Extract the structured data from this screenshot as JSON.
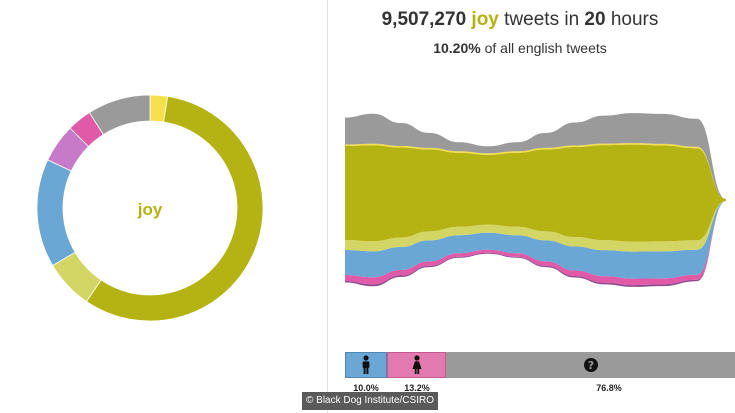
{
  "header": {
    "count": "9,507,270",
    "emotion": "joy",
    "mid": "tweets in",
    "hours": "20",
    "hours_unit": "hours",
    "share": "10.20%",
    "share_suffix": "of all english tweets"
  },
  "gender": {
    "male_label": "10.0%",
    "female_label": "13.2%",
    "unknown_label": "76.8%",
    "male_icon": "male-person-icon",
    "female_icon": "female-person-icon",
    "unknown_icon": "question-mark-icon"
  },
  "credit": "© Black Dog Institute/CSIRO",
  "chart_data": [
    {
      "type": "pie",
      "variant": "donut",
      "center_label": "joy",
      "slices": [
        {
          "value": 2.5,
          "color": "#f4e04d"
        },
        {
          "value": 57.0,
          "color": "#b5b314"
        },
        {
          "value": 7.0,
          "color": "#d3d665"
        },
        {
          "value": 15.5,
          "color": "#6aa7d4"
        },
        {
          "value": 5.5,
          "color": "#c77ac7"
        },
        {
          "value": 3.5,
          "color": "#e05aa8"
        },
        {
          "value": 9.0,
          "color": "#9a9a9a"
        }
      ]
    },
    {
      "type": "area",
      "stacked": true,
      "x": [
        0,
        1,
        2,
        3,
        4,
        5,
        6,
        7,
        8,
        9,
        10,
        11,
        12,
        13
      ],
      "series": [
        {
          "color": "#8f4a8f",
          "values": [
            1.5,
            2.0,
            1.5,
            1.2,
            1.0,
            0.9,
            1.0,
            1.3,
            1.6,
            1.8,
            1.8,
            1.7,
            1.4,
            0.0
          ]
        },
        {
          "color": "#e05aa8",
          "values": [
            6.0,
            7.0,
            5.5,
            4.5,
            3.5,
            3.0,
            3.5,
            4.5,
            5.5,
            6.5,
            6.5,
            6.0,
            5.0,
            0.0
          ]
        },
        {
          "color": "#6aa7d4",
          "values": [
            25.0,
            26.0,
            23.0,
            21.0,
            18.0,
            17.0,
            18.0,
            21.0,
            24.0,
            26.0,
            27.0,
            27.0,
            25.0,
            0.0
          ]
        },
        {
          "color": "#d3d665",
          "values": [
            10.0,
            10.0,
            9.5,
            9.0,
            8.5,
            8.0,
            8.5,
            9.0,
            9.5,
            10.0,
            10.0,
            10.0,
            9.5,
            0.0
          ]
        },
        {
          "color": "#b5b314",
          "values": [
            94.0,
            96.0,
            90.0,
            82.0,
            74.0,
            70.0,
            74.0,
            82.0,
            90.0,
            95.0,
            97.0,
            96.0,
            92.0,
            2.0
          ]
        },
        {
          "color": "#f4e04d",
          "values": [
            1.5,
            1.5,
            1.5,
            1.5,
            1.5,
            1.5,
            1.5,
            1.5,
            1.5,
            1.5,
            1.5,
            1.5,
            1.5,
            0.0
          ]
        },
        {
          "color": "#9a9a9a",
          "values": [
            27.0,
            30.0,
            23.0,
            15.0,
            9.0,
            7.0,
            9.0,
            15.0,
            23.0,
            28.0,
            30.0,
            30.0,
            28.0,
            0.0
          ]
        }
      ]
    },
    {
      "type": "bar",
      "stacked": true,
      "orientation": "horizontal",
      "categories": [
        "male",
        "female",
        "unknown"
      ],
      "values": [
        10.0,
        13.2,
        76.8
      ],
      "colors": [
        "#6aa7d4",
        "#e27ab0",
        "#9a9a9a"
      ]
    }
  ]
}
